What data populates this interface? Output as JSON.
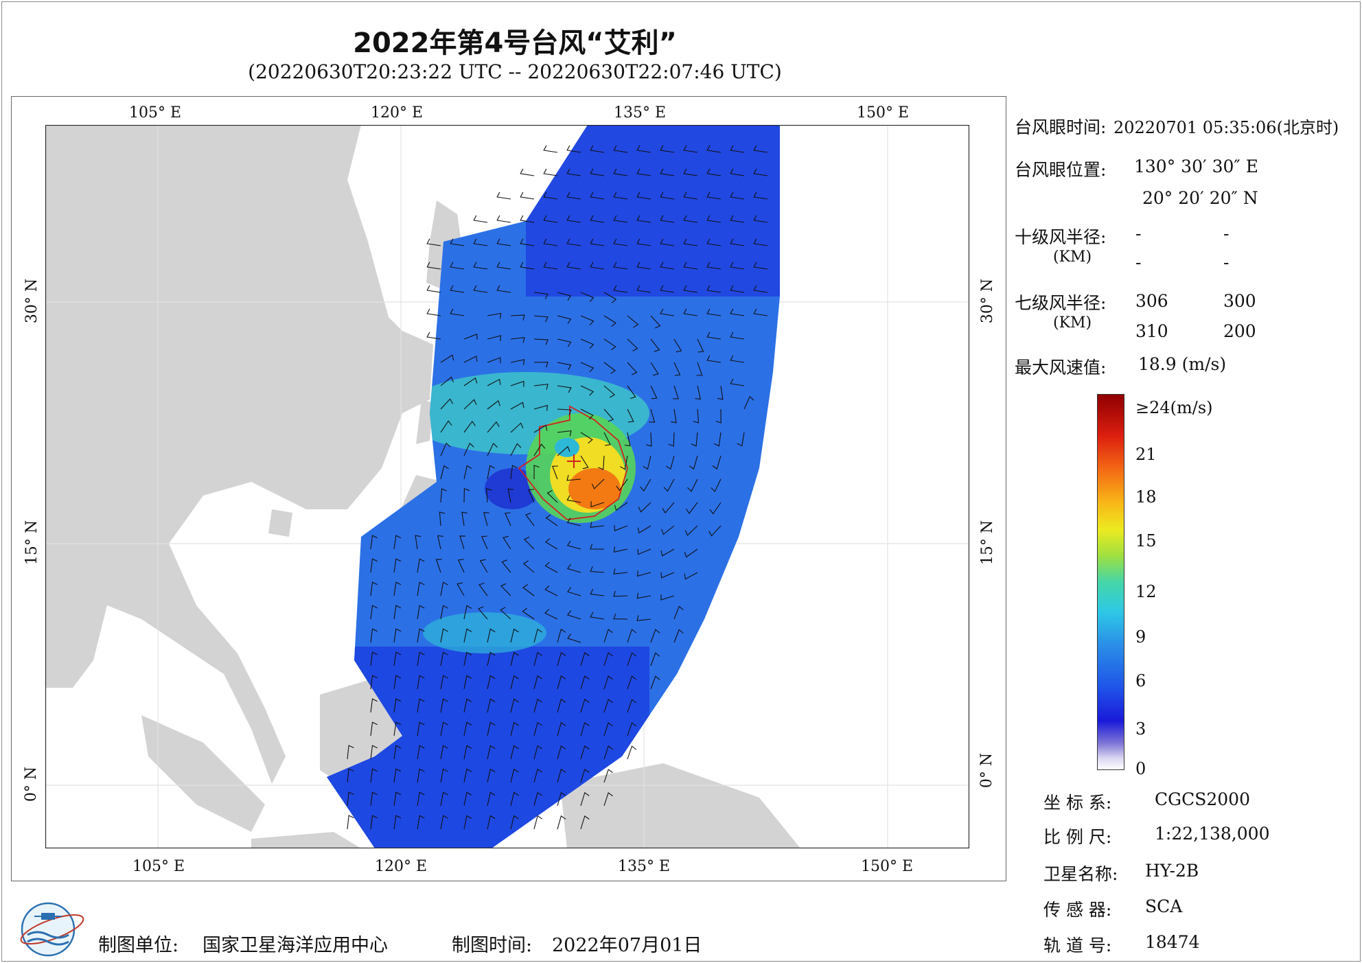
{
  "title": "2022年第4号台风“艾利”",
  "subtitle": "(20220630T20:23:22 UTC -- 20220630T22:07:46 UTC)",
  "map": {
    "lon_labels": [
      "105° E",
      "120° E",
      "135° E",
      "150° E"
    ],
    "lat_labels": [
      "30° N",
      "15° N",
      "0° N"
    ],
    "lon_range": [
      98,
      155
    ],
    "lat_range": [
      -4,
      41
    ],
    "colors": {
      "land": "#d3d3d3",
      "ocean": "#ffffff",
      "grid": "#e2e2e2",
      "wind_radius": "#d22020",
      "barb": "#111111"
    }
  },
  "info": {
    "eye_time_label": "台风眼时间:",
    "eye_time_value": "20220701 05:35:06(北京时)",
    "eye_pos_label": "台风眼位置:",
    "eye_lon": "130° 30′ 30″ E",
    "eye_lat": "20° 20′ 20″ N",
    "r10_label": "十级风半径:",
    "r10_unit": "(KM)",
    "r10_values": [
      "-",
      "-",
      "-",
      "-"
    ],
    "r7_label": "七级风半径:",
    "r7_unit": "(KM)",
    "r7_values": [
      "306",
      "300",
      "310",
      "200"
    ],
    "max_label": "最大风速值:",
    "max_value": "18.9  (m/s)"
  },
  "colorbar": {
    "labels": [
      "≥24(m/s)",
      "21",
      "18",
      "15",
      "12",
      "9",
      "6",
      "3",
      "0"
    ]
  },
  "meta": {
    "crs_label": "坐 标 系:",
    "crs_value": "CGCS2000",
    "scale_label": "比 例 尺:",
    "scale_value": "1:22,138,000",
    "sat_label": "卫星名称:",
    "sat_value": "HY-2B",
    "sensor_label": "传 感 器:",
    "sensor_value": "SCA",
    "orbit_label": "轨 道 号:",
    "orbit_value": "18474"
  },
  "footer": {
    "unit_label": "制图单位:",
    "unit_value": "国家卫星海洋应用中心",
    "time_label": "制图时间:",
    "time_value": "2022年07月01日"
  }
}
